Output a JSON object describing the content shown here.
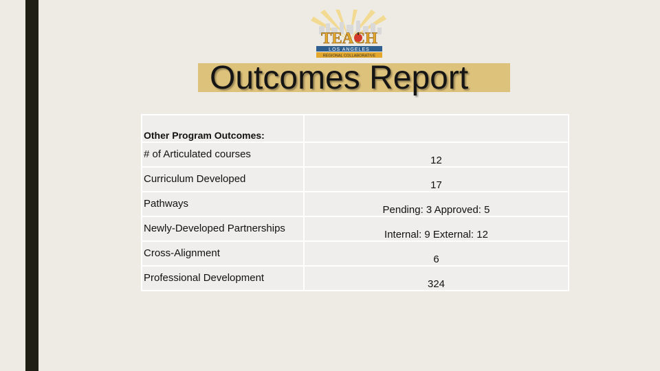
{
  "logo": {
    "name": "TEACH",
    "line1": "LOS ANGELES",
    "line2": "REGIONAL COLLABORATIVE"
  },
  "page_title": "Outcomes Report",
  "table": {
    "header": {
      "label": "Other Program Outcomes:",
      "value": ""
    },
    "rows": [
      {
        "label": "# of Articulated courses",
        "value": "12"
      },
      {
        "label": "Curriculum Developed",
        "value": "17"
      },
      {
        "label": "Pathways",
        "value": "Pending: 3  Approved: 5"
      },
      {
        "label": "Newly-Developed Partnerships",
        "value": "Internal: 9  External: 12"
      },
      {
        "label": "Cross-Alignment",
        "value": "6"
      },
      {
        "label": "Professional Development",
        "value": "324"
      }
    ]
  },
  "colors": {
    "background": "#eeebe4",
    "left_bar": "#1f1f16",
    "title_highlight": "#ddc27c",
    "table_cell": "#efeeec",
    "logo_gold": "#e2a72c",
    "logo_blue": "#2f5f8f"
  }
}
